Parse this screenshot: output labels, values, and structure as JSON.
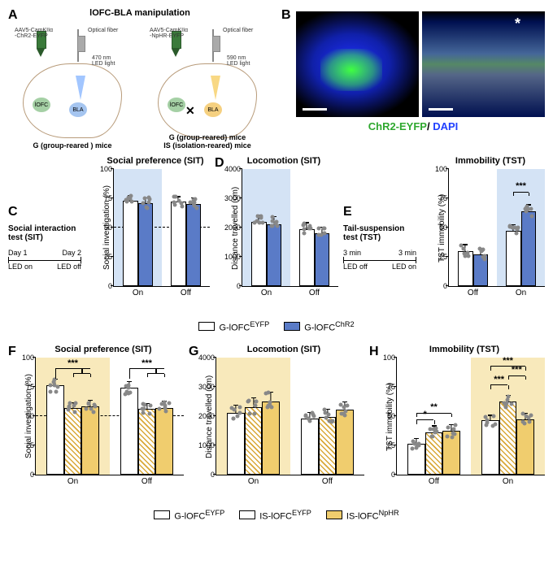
{
  "colors": {
    "blue_fill": "#5a7bc7",
    "blue_shade": "#d4e3f5",
    "yellow_fill": "#f0cd6e",
    "yellow_shade": "#f8e9bb",
    "yellow_hatch": "#d9a838",
    "white": "#ffffff",
    "green_label": "#2fa82f",
    "blue_label": "#2040ff"
  },
  "panel_a": {
    "title": "lOFC-BLA manipulation",
    "left": {
      "virus": "AAV5-CamKIIα\n-ChR2-EYFP",
      "fiber": "Optical fiber",
      "light": "470 nm\nLED light",
      "iofc": "lOFC",
      "bla": "BLA",
      "bottom": "G (group-reared ) mice"
    },
    "right": {
      "virus": "AAV5-CamKIIα\n-NpHR-EYFP",
      "fiber": "Optical fiber",
      "light": "590 nm\nLED light",
      "iofc": "lOFC",
      "bla": "BLA",
      "bottom1": "G (group-reared) mice",
      "bottom2": "IS (isolation-reared) mice"
    }
  },
  "panel_b": {
    "caption_green": "ChR2-EYFP",
    "caption_sep": "/ ",
    "caption_blue": "DAPI"
  },
  "row1": {
    "protocol": {
      "title": "Social interaction\ntest (SIT)",
      "day1": "Day 1",
      "day2": "Day 2",
      "led_on": "LED on",
      "led_off": "LED off"
    },
    "tst_protocol": {
      "title": "Tail-suspension\ntest (TST)",
      "t1": "3 min",
      "t2": "3 min",
      "led_off": "LED off",
      "led_on": "LED on"
    },
    "legend": {
      "g_eyfp": "G-lOFC",
      "g_eyfp_sup": "EYFP",
      "g_chr2": "G-lOFC",
      "g_chr2_sup": "ChR2"
    },
    "charts": {
      "c": {
        "title": "Social preference (SIT)",
        "ylabel": "Social investigation (%)",
        "ymin": 0,
        "ymax": 100,
        "ystep": 25,
        "dashed": 50,
        "groups": [
          "On",
          "Off"
        ],
        "bars": [
          {
            "g": 0,
            "i": 0,
            "v": 73,
            "err": 4,
            "fill": "white"
          },
          {
            "g": 0,
            "i": 1,
            "v": 71,
            "err": 4,
            "fill": "blue"
          },
          {
            "g": 1,
            "i": 0,
            "v": 72,
            "err": 4,
            "fill": "white"
          },
          {
            "g": 1,
            "i": 1,
            "v": 70,
            "err": 5,
            "fill": "blue"
          }
        ],
        "shade": {
          "from": 0,
          "to": 0.5,
          "color": "blue"
        }
      },
      "d": {
        "title": "Locomotion (SIT)",
        "ylabel": "Distance travelled (cm)",
        "ymin": 0,
        "ymax": 4000,
        "ystep": 1000,
        "groups": [
          "On",
          "Off"
        ],
        "bars": [
          {
            "g": 0,
            "i": 0,
            "v": 2200,
            "err": 200,
            "fill": "white"
          },
          {
            "g": 0,
            "i": 1,
            "v": 2100,
            "err": 250,
            "fill": "blue"
          },
          {
            "g": 1,
            "i": 0,
            "v": 1950,
            "err": 200,
            "fill": "white"
          },
          {
            "g": 1,
            "i": 1,
            "v": 1800,
            "err": 200,
            "fill": "blue"
          }
        ],
        "shade": {
          "from": 0,
          "to": 0.5,
          "color": "blue"
        }
      },
      "e": {
        "title": "Immobility (TST)",
        "ylabel": "TST immobility (%)",
        "ymin": 0,
        "ymax": 100,
        "ystep": 25,
        "groups": [
          "Off",
          "On"
        ],
        "bars": [
          {
            "g": 0,
            "i": 0,
            "v": 30,
            "err": 5,
            "fill": "white"
          },
          {
            "g": 0,
            "i": 1,
            "v": 27,
            "err": 5,
            "fill": "blue"
          },
          {
            "g": 1,
            "i": 0,
            "v": 47,
            "err": 5,
            "fill": "white"
          },
          {
            "g": 1,
            "i": 1,
            "v": 64,
            "err": 5,
            "fill": "blue"
          }
        ],
        "shade": {
          "from": 0.5,
          "to": 1,
          "color": "blue"
        },
        "sig": [
          {
            "bars": [
              [
                1,
                0
              ],
              [
                1,
                1
              ]
            ],
            "text": "***",
            "y": 80
          }
        ]
      }
    }
  },
  "row2": {
    "legend": {
      "g_eyfp": "G-lOFC",
      "g_eyfp_sup": "EYFP",
      "is_eyfp": "IS-lOFC",
      "is_eyfp_sup": "EYFP",
      "is_nphr": "IS-lOFC",
      "is_nphr_sup": "NpHR"
    },
    "charts": {
      "f": {
        "title": "Social preference (SIT)",
        "ylabel": "Social investigation (%)",
        "ymin": 0,
        "ymax": 100,
        "ystep": 25,
        "dashed": 50,
        "groups": [
          "On",
          "Off"
        ],
        "bars": [
          {
            "g": 0,
            "i": 0,
            "v": 76,
            "err": 5,
            "fill": "white"
          },
          {
            "g": 0,
            "i": 1,
            "v": 57,
            "err": 4,
            "fill": "yellow_hatch"
          },
          {
            "g": 0,
            "i": 2,
            "v": 58,
            "err": 5,
            "fill": "yellow"
          },
          {
            "g": 1,
            "i": 0,
            "v": 74,
            "err": 5,
            "fill": "white"
          },
          {
            "g": 1,
            "i": 1,
            "v": 56,
            "err": 4,
            "fill": "yellow_hatch"
          },
          {
            "g": 1,
            "i": 2,
            "v": 57,
            "err": 5,
            "fill": "yellow"
          }
        ],
        "shade": {
          "from": 0,
          "to": 0.5,
          "color": "yellow"
        },
        "sig": [
          {
            "bracket": [
              [
                0,
                0
              ],
              [
                0,
                1
              ],
              [
                0,
                2
              ]
            ],
            "text": "***",
            "y": 90
          },
          {
            "bracket": [
              [
                1,
                0
              ],
              [
                1,
                1
              ],
              [
                1,
                2
              ]
            ],
            "text": "***",
            "y": 90
          }
        ]
      },
      "g": {
        "title": "Locomotion (SIT)",
        "ylabel": "Distance travelled (cm)",
        "ymin": 0,
        "ymax": 4000,
        "ystep": 1000,
        "groups": [
          "On",
          "Off"
        ],
        "bars": [
          {
            "g": 0,
            "i": 0,
            "v": 2100,
            "err": 250,
            "fill": "white"
          },
          {
            "g": 0,
            "i": 1,
            "v": 2300,
            "err": 300,
            "fill": "yellow_hatch"
          },
          {
            "g": 0,
            "i": 2,
            "v": 2500,
            "err": 300,
            "fill": "yellow"
          },
          {
            "g": 1,
            "i": 0,
            "v": 1900,
            "err": 200,
            "fill": "white"
          },
          {
            "g": 1,
            "i": 1,
            "v": 1950,
            "err": 250,
            "fill": "yellow_hatch"
          },
          {
            "g": 1,
            "i": 2,
            "v": 2200,
            "err": 250,
            "fill": "yellow"
          }
        ],
        "shade": {
          "from": 0,
          "to": 0.5,
          "color": "yellow"
        }
      },
      "h": {
        "title": "Immobility (TST)",
        "ylabel": "TST immobility (%)",
        "ymin": 0,
        "ymax": 100,
        "ystep": 25,
        "groups": [
          "Off",
          "On"
        ],
        "bars": [
          {
            "g": 0,
            "i": 0,
            "v": 26,
            "err": 4,
            "fill": "white"
          },
          {
            "g": 0,
            "i": 1,
            "v": 36,
            "err": 5,
            "fill": "yellow_hatch"
          },
          {
            "g": 0,
            "i": 2,
            "v": 37,
            "err": 5,
            "fill": "yellow"
          },
          {
            "g": 1,
            "i": 0,
            "v": 46,
            "err": 4,
            "fill": "white"
          },
          {
            "g": 1,
            "i": 1,
            "v": 62,
            "err": 5,
            "fill": "yellow_hatch"
          },
          {
            "g": 1,
            "i": 2,
            "v": 47,
            "err": 5,
            "fill": "yellow"
          }
        ],
        "shade": {
          "from": 0.5,
          "to": 1,
          "color": "yellow"
        },
        "sig": [
          {
            "bars": [
              [
                0,
                0
              ],
              [
                0,
                1
              ]
            ],
            "text": "*",
            "y": 46
          },
          {
            "bars": [
              [
                0,
                0
              ],
              [
                0,
                2
              ]
            ],
            "text": "**",
            "y": 52
          },
          {
            "bars": [
              [
                1,
                0
              ],
              [
                1,
                1
              ]
            ],
            "text": "***",
            "y": 76
          },
          {
            "bars": [
              [
                1,
                1
              ],
              [
                1,
                2
              ]
            ],
            "text": "***",
            "y": 84
          },
          {
            "bars": [
              [
                1,
                0
              ],
              [
                1,
                2
              ]
            ],
            "text": "***",
            "y": 92
          }
        ]
      }
    }
  },
  "panel_labels": {
    "a": "A",
    "b": "B",
    "c": "C",
    "d": "D",
    "e": "E",
    "f": "F",
    "g": "G",
    "h": "H"
  }
}
